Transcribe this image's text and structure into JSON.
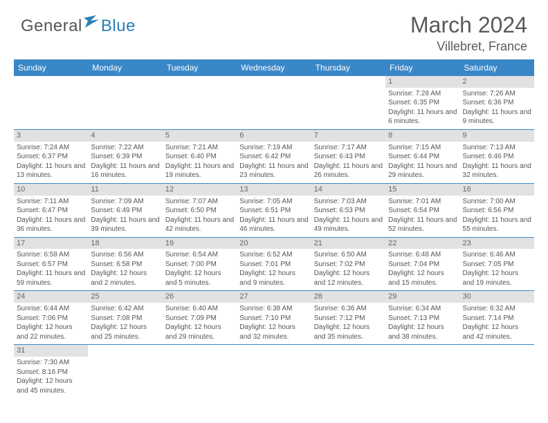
{
  "logo": {
    "part1": "General",
    "part2": "Blue"
  },
  "title": "March 2024",
  "location": "Villebret, France",
  "colors": {
    "header_bg": "#3a87c7",
    "header_fg": "#ffffff",
    "daynum_bg": "#e2e2e2",
    "text": "#555555",
    "logo_blue": "#2a7fb8",
    "row_separator": "#3a87c7"
  },
  "typography": {
    "title_fontsize": 32,
    "location_fontsize": 18,
    "weekday_fontsize": 12,
    "cell_fontsize": 10
  },
  "weekdays": [
    "Sunday",
    "Monday",
    "Tuesday",
    "Wednesday",
    "Thursday",
    "Friday",
    "Saturday"
  ],
  "weeks": [
    [
      null,
      null,
      null,
      null,
      null,
      {
        "day": "1",
        "sunrise": "7:28 AM",
        "sunset": "6:35 PM",
        "daylight": "11 hours and 6 minutes."
      },
      {
        "day": "2",
        "sunrise": "7:26 AM",
        "sunset": "6:36 PM",
        "daylight": "11 hours and 9 minutes."
      }
    ],
    [
      {
        "day": "3",
        "sunrise": "7:24 AM",
        "sunset": "6:37 PM",
        "daylight": "11 hours and 13 minutes."
      },
      {
        "day": "4",
        "sunrise": "7:22 AM",
        "sunset": "6:39 PM",
        "daylight": "11 hours and 16 minutes."
      },
      {
        "day": "5",
        "sunrise": "7:21 AM",
        "sunset": "6:40 PM",
        "daylight": "11 hours and 19 minutes."
      },
      {
        "day": "6",
        "sunrise": "7:19 AM",
        "sunset": "6:42 PM",
        "daylight": "11 hours and 23 minutes."
      },
      {
        "day": "7",
        "sunrise": "7:17 AM",
        "sunset": "6:43 PM",
        "daylight": "11 hours and 26 minutes."
      },
      {
        "day": "8",
        "sunrise": "7:15 AM",
        "sunset": "6:44 PM",
        "daylight": "11 hours and 29 minutes."
      },
      {
        "day": "9",
        "sunrise": "7:13 AM",
        "sunset": "6:46 PM",
        "daylight": "11 hours and 32 minutes."
      }
    ],
    [
      {
        "day": "10",
        "sunrise": "7:11 AM",
        "sunset": "6:47 PM",
        "daylight": "11 hours and 36 minutes."
      },
      {
        "day": "11",
        "sunrise": "7:09 AM",
        "sunset": "6:49 PM",
        "daylight": "11 hours and 39 minutes."
      },
      {
        "day": "12",
        "sunrise": "7:07 AM",
        "sunset": "6:50 PM",
        "daylight": "11 hours and 42 minutes."
      },
      {
        "day": "13",
        "sunrise": "7:05 AM",
        "sunset": "6:51 PM",
        "daylight": "11 hours and 46 minutes."
      },
      {
        "day": "14",
        "sunrise": "7:03 AM",
        "sunset": "6:53 PM",
        "daylight": "11 hours and 49 minutes."
      },
      {
        "day": "15",
        "sunrise": "7:01 AM",
        "sunset": "6:54 PM",
        "daylight": "11 hours and 52 minutes."
      },
      {
        "day": "16",
        "sunrise": "7:00 AM",
        "sunset": "6:56 PM",
        "daylight": "11 hours and 55 minutes."
      }
    ],
    [
      {
        "day": "17",
        "sunrise": "6:58 AM",
        "sunset": "6:57 PM",
        "daylight": "11 hours and 59 minutes."
      },
      {
        "day": "18",
        "sunrise": "6:56 AM",
        "sunset": "6:58 PM",
        "daylight": "12 hours and 2 minutes."
      },
      {
        "day": "19",
        "sunrise": "6:54 AM",
        "sunset": "7:00 PM",
        "daylight": "12 hours and 5 minutes."
      },
      {
        "day": "20",
        "sunrise": "6:52 AM",
        "sunset": "7:01 PM",
        "daylight": "12 hours and 9 minutes."
      },
      {
        "day": "21",
        "sunrise": "6:50 AM",
        "sunset": "7:02 PM",
        "daylight": "12 hours and 12 minutes."
      },
      {
        "day": "22",
        "sunrise": "6:48 AM",
        "sunset": "7:04 PM",
        "daylight": "12 hours and 15 minutes."
      },
      {
        "day": "23",
        "sunrise": "6:46 AM",
        "sunset": "7:05 PM",
        "daylight": "12 hours and 19 minutes."
      }
    ],
    [
      {
        "day": "24",
        "sunrise": "6:44 AM",
        "sunset": "7:06 PM",
        "daylight": "12 hours and 22 minutes."
      },
      {
        "day": "25",
        "sunrise": "6:42 AM",
        "sunset": "7:08 PM",
        "daylight": "12 hours and 25 minutes."
      },
      {
        "day": "26",
        "sunrise": "6:40 AM",
        "sunset": "7:09 PM",
        "daylight": "12 hours and 29 minutes."
      },
      {
        "day": "27",
        "sunrise": "6:38 AM",
        "sunset": "7:10 PM",
        "daylight": "12 hours and 32 minutes."
      },
      {
        "day": "28",
        "sunrise": "6:36 AM",
        "sunset": "7:12 PM",
        "daylight": "12 hours and 35 minutes."
      },
      {
        "day": "29",
        "sunrise": "6:34 AM",
        "sunset": "7:13 PM",
        "daylight": "12 hours and 38 minutes."
      },
      {
        "day": "30",
        "sunrise": "6:32 AM",
        "sunset": "7:14 PM",
        "daylight": "12 hours and 42 minutes."
      }
    ],
    [
      {
        "day": "31",
        "sunrise": "7:30 AM",
        "sunset": "8:16 PM",
        "daylight": "12 hours and 45 minutes."
      },
      null,
      null,
      null,
      null,
      null,
      null
    ]
  ],
  "labels": {
    "sunrise": "Sunrise:",
    "sunset": "Sunset:",
    "daylight": "Daylight:"
  }
}
